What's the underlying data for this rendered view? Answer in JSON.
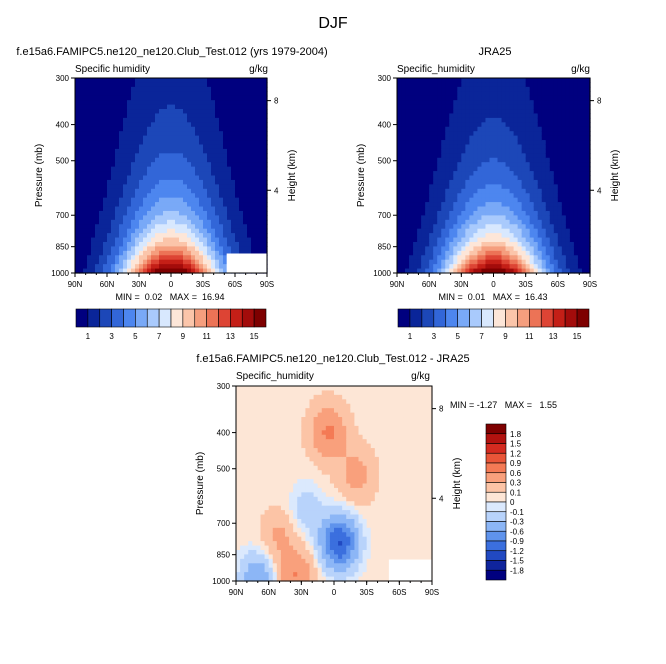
{
  "figure": {
    "title": "DJF"
  },
  "chart_data": [
    {
      "type": "heatmap",
      "title": "f.e15a6.FAMIPC5.ne120_ne120.Club_Test.012 (yrs 1979-2004)",
      "subtitle_left": "Specific humidity",
      "subtitle_right": "g/kg",
      "xlabel": "",
      "ylabel": "Pressure (mb)",
      "ylabel_right": "Height (km)",
      "x_ticks": [
        "90N",
        "60N",
        "30N",
        "0",
        "30S",
        "60S",
        "90S"
      ],
      "y_ticks": [
        "300",
        "400",
        "500",
        "700",
        "850",
        "1000"
      ],
      "y_ticks_values": [
        300,
        400,
        500,
        700,
        850,
        1000
      ],
      "right_ticks": [
        "8",
        "4"
      ],
      "right_ticks_pressure": [
        345,
        600
      ],
      "ylim": [
        1000,
        300
      ],
      "xlim": [
        90,
        -90
      ],
      "stats": "MIN =  0.02   MAX =  16.94",
      "min": 0.02,
      "max": 16.94,
      "field": {
        "peak": 16.3,
        "lat_center": 0,
        "lat_halfwidth": 62,
        "top": 400,
        "scale_height": 0.54,
        "skew": 0.0
      },
      "missing_region": "bottom-right corner (60S-90S, near surface)"
    },
    {
      "type": "heatmap",
      "title": "JRA25",
      "subtitle_left": "Specific_humidity",
      "subtitle_right": "g/kg",
      "xlabel": "",
      "ylabel": "Pressure (mb)",
      "ylabel_right": "Height (km)",
      "x_ticks": [
        "90N",
        "60N",
        "30N",
        "0",
        "30S",
        "60S",
        "90S"
      ],
      "y_ticks": [
        "300",
        "400",
        "500",
        "700",
        "850",
        "1000"
      ],
      "y_ticks_values": [
        300,
        400,
        500,
        700,
        850,
        1000
      ],
      "right_ticks": [
        "8",
        "4"
      ],
      "right_ticks_pressure": [
        345,
        600
      ],
      "ylim": [
        1000,
        300
      ],
      "xlim": [
        90,
        -90
      ],
      "stats": "MIN =  0.01   MAX =  16.43",
      "min": 0.01,
      "max": 16.43,
      "field": {
        "peak": 16.0,
        "lat_center": 0,
        "lat_halfwidth": 62,
        "top": 400,
        "scale_height": 0.52,
        "skew": 0.0
      }
    },
    {
      "type": "heatmap",
      "title": "f.e15a6.FAMIPC5.ne120_ne120.Club_Test.012 - JRA25",
      "subtitle_left": "Specific_humidity",
      "subtitle_right": "g/kg",
      "xlabel": "",
      "ylabel": "Pressure (mb)",
      "ylabel_right": "Height (km)",
      "x_ticks": [
        "90N",
        "60N",
        "30N",
        "0",
        "30S",
        "60S",
        "90S"
      ],
      "y_ticks": [
        "300",
        "400",
        "500",
        "700",
        "850",
        "1000"
      ],
      "y_ticks_values": [
        300,
        400,
        500,
        700,
        850,
        1000
      ],
      "right_ticks": [
        "8",
        "4"
      ],
      "right_ticks_pressure": [
        345,
        600
      ],
      "ylim": [
        1000,
        300
      ],
      "xlim": [
        90,
        -90
      ],
      "stats": "MIN = -1.27   MAX =   1.55",
      "min": -1.27,
      "max": 1.55,
      "features": [
        {
          "kind": "moist",
          "lat": 5,
          "p": 400,
          "value": 0.6
        },
        {
          "kind": "moist",
          "lat": -20,
          "p": 520,
          "value": 0.35
        },
        {
          "kind": "dry",
          "lat": -5,
          "p": 790,
          "value": -1.27
        },
        {
          "kind": "dry",
          "lat": 25,
          "p": 650,
          "value": -0.25
        },
        {
          "kind": "moist",
          "lat": 50,
          "p": 760,
          "value": 0.3
        },
        {
          "kind": "moist",
          "lat": 35,
          "p": 975,
          "value": 0.55
        },
        {
          "kind": "dry",
          "lat": 70,
          "p": 990,
          "value": -0.6
        }
      ]
    }
  ],
  "colorbars": {
    "humidity": {
      "labels": [
        "1",
        "3",
        "5",
        "7",
        "9",
        "11",
        "13",
        "15"
      ],
      "colors": [
        "#00007f",
        "#0a2599",
        "#1c47b8",
        "#3266d8",
        "#4d86ef",
        "#79a9f7",
        "#a9cafc",
        "#d8e8fe",
        "#fde6d8",
        "#fbc5aa",
        "#f59e7e",
        "#ec7356",
        "#dd4434",
        "#c41f17",
        "#a30c0b",
        "#7e0000"
      ]
    },
    "difference": {
      "labels": [
        "1.8",
        "1.5",
        "1.2",
        "0.9",
        "0.6",
        "0.3",
        "0.1",
        "0",
        "-0.1",
        "-0.3",
        "-0.6",
        "-0.9",
        "-1.2",
        "-1.5",
        "-1.8"
      ],
      "colors": [
        "#7e0000",
        "#b2120f",
        "#d42b20",
        "#e95538",
        "#f47a55",
        "#f9a07c",
        "#fcc4a6",
        "#fde6d6",
        "#dbe9fd",
        "#b8d3fb",
        "#8cb6f6",
        "#5f93ec",
        "#3b6fde",
        "#2149c2",
        "#0f249c",
        "#00007f"
      ]
    }
  }
}
